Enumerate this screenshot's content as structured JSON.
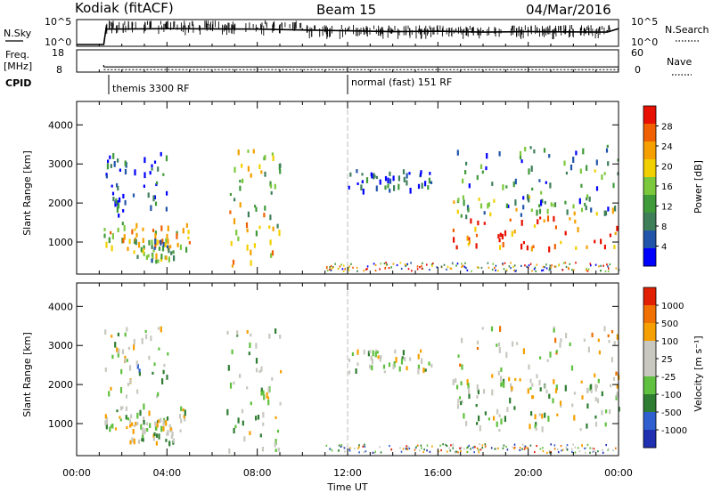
{
  "header": {
    "station": "Kodiak (fitACF)",
    "beam": "Beam 15",
    "date": "04/Mar/2016"
  },
  "colors": {
    "panel_frame": "#000000",
    "power_scale": [
      "#0000ff",
      "#2255aa",
      "#3e7f5a",
      "#3f9a3a",
      "#7cc83c",
      "#f2d000",
      "#f6a000",
      "#f06000",
      "#e81000"
    ],
    "velocity_scale": [
      "#2030b0",
      "#3060d0",
      "#2f7d32",
      "#60c040",
      "#c8c8c0",
      "#c8c8c0",
      "#f5a000",
      "#f07000",
      "#e02000"
    ]
  },
  "chart_data": [
    {
      "type": "line",
      "panel": "noise",
      "left_label": "N.Sky",
      "right_label": "N.Search",
      "left_ticks": [
        "10^5",
        "10^0"
      ],
      "right_ticks": [
        "10^5",
        "10^0"
      ],
      "x_ticks": [
        "00:00",
        "04:00",
        "08:00",
        "12:00",
        "16:00",
        "20:00",
        "00:00"
      ],
      "series": [
        {
          "name": "N.Sky",
          "x": [
            0.0,
            1.2,
            1.3,
            4,
            8,
            10,
            12,
            14,
            16,
            18,
            20,
            23.5,
            24
          ],
          "y": [
            0,
            0,
            3.6,
            3.7,
            3.6,
            3.4,
            3.2,
            3.0,
            3.1,
            2.9,
            3.0,
            2.9,
            3.7
          ]
        },
        {
          "name": "N.Search",
          "x": [
            1.3,
            4,
            8,
            10,
            12,
            14,
            16,
            18,
            20,
            23.5
          ],
          "y": [
            3.8,
            3.9,
            3.8,
            3.6,
            3.4,
            3.3,
            3.3,
            3.2,
            3.3,
            3.2
          ]
        }
      ]
    },
    {
      "type": "line",
      "panel": "frequency",
      "left_label": "Freq.",
      "left_unit": "[MHz]",
      "right_label": "Nave",
      "left_ticks": [
        "18",
        "8"
      ],
      "right_ticks": [
        "60",
        "0"
      ],
      "series": [
        {
          "name": "Freq.",
          "x": [
            1.2,
            24
          ],
          "y": [
            10.2,
            10.2
          ]
        },
        {
          "name": "Nave",
          "x": [
            1.2,
            24
          ],
          "y": [
            5,
            5
          ]
        }
      ]
    },
    {
      "type": "table",
      "panel": "cpid",
      "label": "CPID",
      "modes": [
        {
          "start": 1.2,
          "label": "themis 3300 RF"
        },
        {
          "start": 12.0,
          "label": "normal (fast) 151 RF"
        }
      ]
    },
    {
      "type": "heatmap",
      "panel": "power",
      "ylabel": "Slant Range [km]",
      "yticks": [
        1000,
        2000,
        3000,
        4000
      ],
      "ylim": [
        180,
        4600
      ],
      "xlim": [
        0,
        24
      ],
      "x_ticks": [
        "00:00",
        "04:00",
        "08:00",
        "12:00",
        "16:00",
        "20:00",
        "00:00"
      ],
      "colorbar_label": "Power [dB]",
      "colorbar_ticks": [
        "28",
        "24",
        "20",
        "16",
        "12",
        "8",
        "4"
      ],
      "regions": [
        {
          "t0": 1.2,
          "t1": 5.0,
          "r0": 850,
          "r1": 1550,
          "level": 0.6
        },
        {
          "t0": 2.3,
          "t1": 4.3,
          "r0": 550,
          "r1": 1100,
          "level": 0.45
        },
        {
          "t0": 1.2,
          "t1": 4.0,
          "r0": 1700,
          "r1": 3500,
          "level": 0.15
        },
        {
          "t0": 6.6,
          "t1": 9.0,
          "r0": 300,
          "r1": 3500,
          "level": 0.55
        },
        {
          "t0": 12.0,
          "t1": 15.8,
          "r0": 2350,
          "r1": 2900,
          "level": 0.15
        },
        {
          "t0": 16.5,
          "t1": 24.0,
          "r0": 850,
          "r1": 1700,
          "level": 0.85
        },
        {
          "t0": 16.5,
          "t1": 24.0,
          "r0": 1700,
          "r1": 2200,
          "level": 0.45
        },
        {
          "t0": 16.8,
          "t1": 24.0,
          "r0": 1900,
          "r1": 3500,
          "level": 0.3
        }
      ]
    },
    {
      "type": "heatmap",
      "panel": "velocity",
      "ylabel": "Slant Range [km]",
      "yticks": [
        1000,
        2000,
        3000,
        4000
      ],
      "ylim": [
        180,
        4600
      ],
      "xlim": [
        0,
        24
      ],
      "xlabel": "Time UT",
      "x_ticks": [
        "00:00",
        "04:00",
        "08:00",
        "12:00",
        "16:00",
        "20:00",
        "00:00"
      ],
      "colorbar_label": "Velocity [m s⁻¹]",
      "colorbar_ticks": [
        "1000",
        "500",
        "100",
        "25",
        "-25",
        "-100",
        "-500",
        "-1000"
      ],
      "regions": [
        {
          "t0": 1.2,
          "t1": 5.0,
          "r0": 850,
          "r1": 1550,
          "level": 0.5
        },
        {
          "t0": 2.3,
          "t1": 4.3,
          "r0": 550,
          "r1": 1100,
          "level": 0.5
        },
        {
          "t0": 1.2,
          "t1": 4.0,
          "r0": 1700,
          "r1": 3500,
          "level": 0.45
        },
        {
          "t0": 6.6,
          "t1": 9.0,
          "r0": 300,
          "r1": 3500,
          "level": 0.5
        },
        {
          "t0": 12.0,
          "t1": 15.8,
          "r0": 2350,
          "r1": 2900,
          "level": 0.5
        },
        {
          "t0": 16.5,
          "t1": 24.0,
          "r0": 850,
          "r1": 1700,
          "level": 0.5
        },
        {
          "t0": 16.5,
          "t1": 24.0,
          "r0": 1700,
          "r1": 2200,
          "level": 0.5
        },
        {
          "t0": 16.8,
          "t1": 24.0,
          "r0": 1900,
          "r1": 3500,
          "level": 0.6
        }
      ]
    }
  ]
}
